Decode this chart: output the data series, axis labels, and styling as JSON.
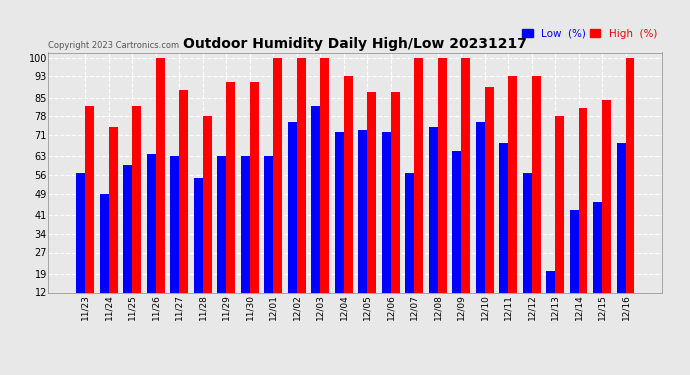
{
  "title": "Outdoor Humidity Daily High/Low 20231217",
  "copyright": "Copyright 2023 Cartronics.com",
  "legend_low": "Low  (%)",
  "legend_high": "High  (%)",
  "dates": [
    "11/23",
    "11/24",
    "11/25",
    "11/26",
    "11/27",
    "11/28",
    "11/29",
    "11/30",
    "12/01",
    "12/02",
    "12/03",
    "12/04",
    "12/05",
    "12/06",
    "12/07",
    "12/08",
    "12/09",
    "12/10",
    "12/11",
    "12/12",
    "12/13",
    "12/14",
    "12/15",
    "12/16"
  ],
  "high_values": [
    82,
    74,
    82,
    100,
    88,
    78,
    91,
    91,
    100,
    100,
    100,
    93,
    87,
    87,
    100,
    100,
    100,
    89,
    93,
    93,
    78,
    81,
    84,
    100
  ],
  "low_values": [
    57,
    49,
    60,
    64,
    63,
    55,
    63,
    63,
    63,
    76,
    82,
    72,
    73,
    72,
    57,
    74,
    65,
    76,
    68,
    57,
    20,
    43,
    46,
    68
  ],
  "high_color": "#ff0000",
  "low_color": "#0000ff",
  "bg_color": "#e8e8e8",
  "grid_color": "#ffffff",
  "title_fontsize": 10,
  "yticks": [
    12,
    19,
    27,
    34,
    41,
    49,
    56,
    63,
    71,
    78,
    85,
    93,
    100
  ],
  "ymin": 12,
  "ymax": 102,
  "bar_width": 0.38
}
